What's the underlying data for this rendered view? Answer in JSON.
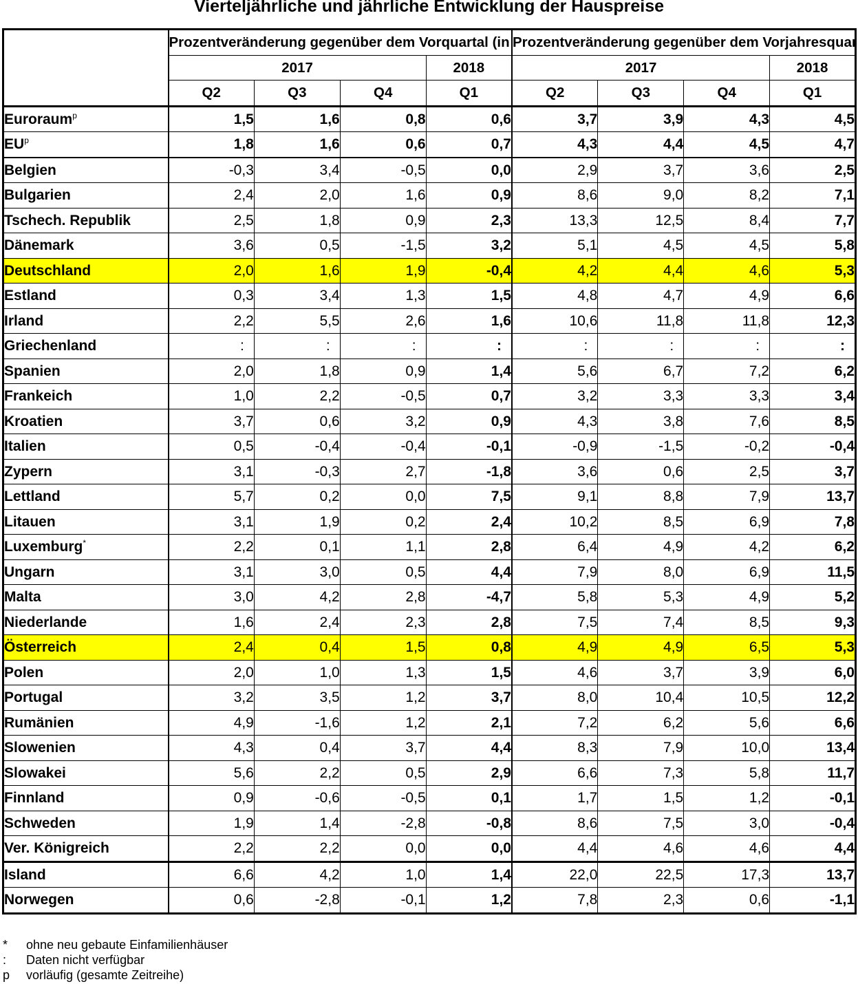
{
  "title": "Vierteljährliche und jährliche Entwicklung der Hauspreise",
  "header": {
    "group_left": "Prozentveränderung gegenüber dem Vorquartal (in %)",
    "group_right": "Prozentveränderung gegenüber dem Vorjahresquartal (in %)",
    "year_2017": "2017",
    "year_2018": "2018",
    "quarters": [
      "Q2",
      "Q3",
      "Q4",
      "Q1",
      "Q2",
      "Q3",
      "Q4",
      "Q1"
    ]
  },
  "rows": [
    {
      "name": "Euroraum",
      "sup": "p",
      "values": [
        "1,5",
        "1,6",
        "0,8",
        "0,6",
        "3,7",
        "3,9",
        "4,3",
        "4,5"
      ]
    },
    {
      "name": "EU",
      "sup": "p",
      "values": [
        "1,8",
        "1,6",
        "0,6",
        "0,7",
        "4,3",
        "4,4",
        "4,5",
        "4,7"
      ]
    },
    {
      "name": "Belgien",
      "values": [
        "-0,3",
        "3,4",
        "-0,5",
        "0,0",
        "2,9",
        "3,7",
        "3,6",
        "2,5"
      ]
    },
    {
      "name": "Bulgarien",
      "values": [
        "2,4",
        "2,0",
        "1,6",
        "0,9",
        "8,6",
        "9,0",
        "8,2",
        "7,1"
      ]
    },
    {
      "name": "Tschech. Republik",
      "values": [
        "2,5",
        "1,8",
        "0,9",
        "2,3",
        "13,3",
        "12,5",
        "8,4",
        "7,7"
      ]
    },
    {
      "name": "Dänemark",
      "values": [
        "3,6",
        "0,5",
        "-1,5",
        "3,2",
        "5,1",
        "4,5",
        "4,5",
        "5,8"
      ]
    },
    {
      "name": "Deutschland",
      "values": [
        "2,0",
        "1,6",
        "1,9",
        "-0,4",
        "4,2",
        "4,4",
        "4,6",
        "5,3"
      ],
      "highlight": "#ffff00"
    },
    {
      "name": "Estland",
      "values": [
        "0,3",
        "3,4",
        "1,3",
        "1,5",
        "4,8",
        "4,7",
        "4,9",
        "6,6"
      ]
    },
    {
      "name": "Irland",
      "values": [
        "2,2",
        "5,5",
        "2,6",
        "1,6",
        "10,6",
        "11,8",
        "11,8",
        "12,3"
      ]
    },
    {
      "name": "Griechenland",
      "values": [
        ":",
        ":",
        ":",
        ":",
        ":",
        ":",
        ":",
        ":"
      ]
    },
    {
      "name": "Spanien",
      "values": [
        "2,0",
        "1,8",
        "0,9",
        "1,4",
        "5,6",
        "6,7",
        "7,2",
        "6,2"
      ]
    },
    {
      "name": "Frankeich",
      "values": [
        "1,0",
        "2,2",
        "-0,5",
        "0,7",
        "3,2",
        "3,3",
        "3,3",
        "3,4"
      ]
    },
    {
      "name": "Kroatien",
      "values": [
        "3,7",
        "0,6",
        "3,2",
        "0,9",
        "4,3",
        "3,8",
        "7,6",
        "8,5"
      ]
    },
    {
      "name": "Italien",
      "values": [
        "0,5",
        "-0,4",
        "-0,4",
        "-0,1",
        "-0,9",
        "-1,5",
        "-0,2",
        "-0,4"
      ]
    },
    {
      "name": "Zypern",
      "values": [
        "3,1",
        "-0,3",
        "2,7",
        "-1,8",
        "3,6",
        "0,6",
        "2,5",
        "3,7"
      ]
    },
    {
      "name": "Lettland",
      "values": [
        "5,7",
        "0,2",
        "0,0",
        "7,5",
        "9,1",
        "8,8",
        "7,9",
        "13,7"
      ]
    },
    {
      "name": "Litauen",
      "values": [
        "3,1",
        "1,9",
        "0,2",
        "2,4",
        "10,2",
        "8,5",
        "6,9",
        "7,8"
      ]
    },
    {
      "name": "Luxemburg",
      "sup": "*",
      "values": [
        "2,2",
        "0,1",
        "1,1",
        "2,8",
        "6,4",
        "4,9",
        "4,2",
        "6,2"
      ]
    },
    {
      "name": "Ungarn",
      "values": [
        "3,1",
        "3,0",
        "0,5",
        "4,4",
        "7,9",
        "8,0",
        "6,9",
        "11,5"
      ]
    },
    {
      "name": "Malta",
      "values": [
        "3,0",
        "4,2",
        "2,8",
        "-4,7",
        "5,8",
        "5,3",
        "4,9",
        "5,2"
      ]
    },
    {
      "name": "Niederlande",
      "values": [
        "1,6",
        "2,4",
        "2,3",
        "2,8",
        "7,5",
        "7,4",
        "8,5",
        "9,3"
      ]
    },
    {
      "name": "Österreich",
      "values": [
        "2,4",
        "0,4",
        "1,5",
        "0,8",
        "4,9",
        "4,9",
        "6,5",
        "5,3"
      ],
      "highlight": "#ffff00"
    },
    {
      "name": "Polen",
      "values": [
        "2,0",
        "1,0",
        "1,3",
        "1,5",
        "4,6",
        "3,7",
        "3,9",
        "6,0"
      ]
    },
    {
      "name": "Portugal",
      "values": [
        "3,2",
        "3,5",
        "1,2",
        "3,7",
        "8,0",
        "10,4",
        "10,5",
        "12,2"
      ]
    },
    {
      "name": "Rumänien",
      "values": [
        "4,9",
        "-1,6",
        "1,2",
        "2,1",
        "7,2",
        "6,2",
        "5,6",
        "6,6"
      ]
    },
    {
      "name": "Slowenien",
      "values": [
        "4,3",
        "0,4",
        "3,7",
        "4,4",
        "8,3",
        "7,9",
        "10,0",
        "13,4"
      ]
    },
    {
      "name": "Slowakei",
      "values": [
        "5,6",
        "2,2",
        "0,5",
        "2,9",
        "6,6",
        "7,3",
        "5,8",
        "11,7"
      ]
    },
    {
      "name": "Finnland",
      "values": [
        "0,9",
        "-0,6",
        "-0,5",
        "0,1",
        "1,7",
        "1,5",
        "1,2",
        "-0,1"
      ]
    },
    {
      "name": "Schweden",
      "values": [
        "1,9",
        "1,4",
        "-2,8",
        "-0,8",
        "8,6",
        "7,5",
        "3,0",
        "-0,4"
      ]
    },
    {
      "name": "Ver. Königreich",
      "values": [
        "2,2",
        "2,2",
        "0,0",
        "0,0",
        "4,4",
        "4,6",
        "4,6",
        "4,4"
      ]
    },
    {
      "name": "Island",
      "values": [
        "6,6",
        "4,2",
        "1,0",
        "1,4",
        "22,0",
        "22,5",
        "17,3",
        "13,7"
      ]
    },
    {
      "name": "Norwegen",
      "values": [
        "0,6",
        "-2,8",
        "-0,1",
        "1,2",
        "7,8",
        "2,3",
        "0,6",
        "-1,1"
      ]
    }
  ],
  "footnotes": [
    {
      "symbol": "*",
      "text": "ohne neu gebaute Einfamilienhäuser"
    },
    {
      "symbol": ":",
      "text": "Daten nicht verfügbar"
    },
    {
      "symbol": "p",
      "text": "vorläufig (gesamte Zeitreihe)"
    }
  ]
}
